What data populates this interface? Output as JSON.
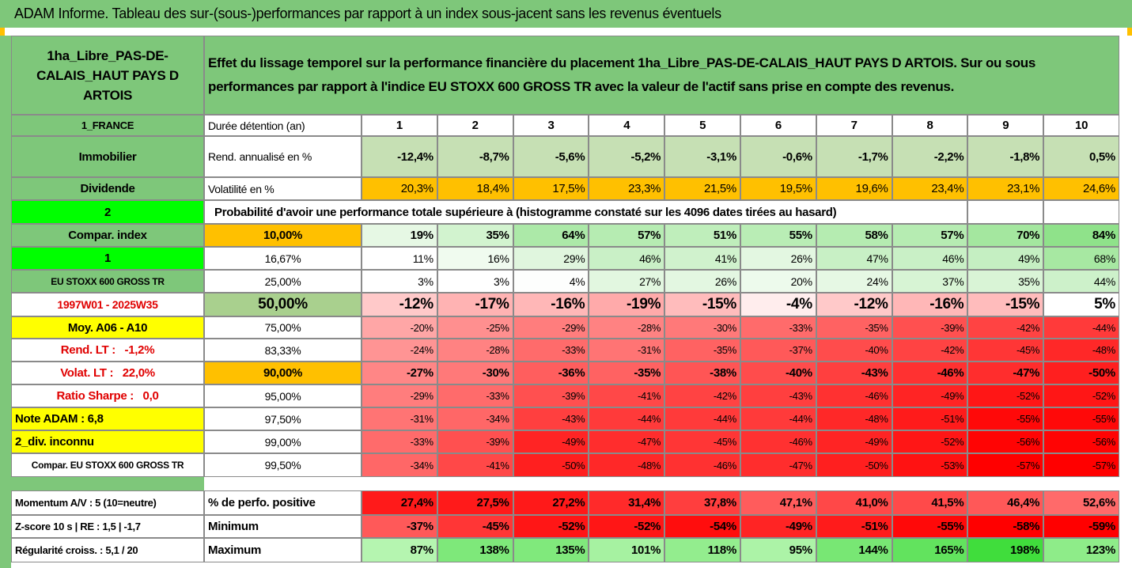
{
  "title": "ADAM Informe. Tableau des sur-(sous-)performances par rapport à un index sous-jacent sans les revenus éventuels",
  "header": {
    "asset": "1ha_Libre_PAS-DE-CALAIS_HAUT PAYS D ARTOIS",
    "description": "Effet du lissage temporel sur la performance financière du placement 1ha_Libre_PAS-DE-CALAIS_HAUT PAYS D ARTOIS. Sur ou sous performances par rapport à l'indice EU STOXX 600 GROSS TR avec la valeur de l'actif sans prise en compte des revenus."
  },
  "rows": [
    {
      "label": "1_FRANCE",
      "metric": "Durée détention (an)",
      "values": [
        1,
        2,
        3,
        4,
        5,
        6,
        7,
        8,
        9,
        10
      ]
    },
    {
      "label": "Immobilier",
      "metric": "Rend. annualisé en %",
      "values": [
        "-12,4%",
        "-8,7%",
        "-5,6%",
        "-5,2%",
        "-3,1%",
        "-0,6%",
        "-1,7%",
        "-2,2%",
        "-1,8%",
        "0,5%"
      ]
    },
    {
      "label": "Dividende",
      "metric": "Volatilité en %",
      "values": [
        "20,3%",
        "18,4%",
        "17,5%",
        "23,3%",
        "21,5%",
        "19,5%",
        "19,6%",
        "23,4%",
        "23,1%",
        "24,6%"
      ]
    },
    {
      "label": "2",
      "text": "Probabilité d'avoir une performance totale supérieure à (histogramme constaté sur les 4096 dates tirées au hasard)"
    },
    {
      "label": "Compar. index",
      "metric": "10,00%",
      "values": [
        "19%",
        "35%",
        "64%",
        "57%",
        "51%",
        "55%",
        "58%",
        "57%",
        "70%",
        "84%"
      ]
    },
    {
      "label": "1",
      "metric": "16,67%",
      "values": [
        "11%",
        "16%",
        "29%",
        "46%",
        "41%",
        "26%",
        "47%",
        "46%",
        "49%",
        "68%"
      ]
    },
    {
      "label": "EU STOXX 600 GROSS TR",
      "metric": "25,00%",
      "values": [
        "3%",
        "3%",
        "4%",
        "27%",
        "26%",
        "20%",
        "24%",
        "37%",
        "35%",
        "44%"
      ]
    },
    {
      "label": "1997W01 - 2025W35",
      "metric": "50,00%",
      "values": [
        "-12%",
        "-17%",
        "-16%",
        "-19%",
        "-15%",
        "-4%",
        "-12%",
        "-16%",
        "-15%",
        "5%"
      ]
    },
    {
      "label": "Moy. A06 - A10",
      "metric": "75,00%",
      "values": [
        "-20%",
        "-25%",
        "-29%",
        "-28%",
        "-30%",
        "-33%",
        "-35%",
        "-39%",
        "-42%",
        "-44%"
      ]
    },
    {
      "label": "Rend. LT :   -1,2%",
      "metric": "83,33%",
      "values": [
        "-24%",
        "-28%",
        "-33%",
        "-31%",
        "-35%",
        "-37%",
        "-40%",
        "-42%",
        "-45%",
        "-48%"
      ]
    },
    {
      "label": "Volat. LT :   22,0%",
      "metric": "90,00%",
      "values": [
        "-27%",
        "-30%",
        "-36%",
        "-35%",
        "-38%",
        "-40%",
        "-43%",
        "-46%",
        "-47%",
        "-50%"
      ]
    },
    {
      "label": "Ratio Sharpe :   0,0",
      "metric": "95,00%",
      "values": [
        "-29%",
        "-33%",
        "-39%",
        "-41%",
        "-42%",
        "-43%",
        "-46%",
        "-49%",
        "-52%",
        "-52%"
      ]
    },
    {
      "label": "Note ADAM : 6,8",
      "metric": "97,50%",
      "values": [
        "-31%",
        "-34%",
        "-43%",
        "-44%",
        "-44%",
        "-44%",
        "-48%",
        "-51%",
        "-55%",
        "-55%"
      ]
    },
    {
      "label": "2_div. inconnu",
      "metric": "99,00%",
      "values": [
        "-33%",
        "-39%",
        "-49%",
        "-47%",
        "-45%",
        "-46%",
        "-49%",
        "-52%",
        "-56%",
        "-56%"
      ]
    },
    {
      "label": "Compar. EU STOXX 600 GROSS TR",
      "metric": "99,50%",
      "values": [
        "-34%",
        "-41%",
        "-50%",
        "-48%",
        "-46%",
        "-47%",
        "-50%",
        "-53%",
        "-57%",
        "-57%"
      ]
    },
    {
      "label": "Momentum A/V : 5 (10=neutre)",
      "metric": "% de perfo. positive",
      "values": [
        "27,4%",
        "27,5%",
        "27,2%",
        "31,4%",
        "37,8%",
        "47,1%",
        "41,0%",
        "41,5%",
        "46,4%",
        "52,6%"
      ]
    },
    {
      "label": "Z-score 10 s | RE : 1,5 | -1,7",
      "metric": "Minimum",
      "values": [
        "-37%",
        "-45%",
        "-52%",
        "-52%",
        "-54%",
        "-49%",
        "-51%",
        "-55%",
        "-58%",
        "-59%"
      ]
    },
    {
      "label": "Régularité croiss. : 5,1 / 20",
      "metric": "Maximum",
      "values": [
        "87%",
        "138%",
        "135%",
        "101%",
        "118%",
        "95%",
        "144%",
        "165%",
        "198%",
        "123%"
      ]
    }
  ]
}
